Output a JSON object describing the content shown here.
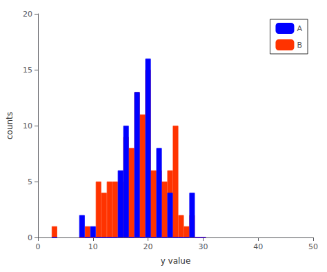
{
  "chart_data": {
    "type": "bar",
    "x": [
      3,
      8,
      9,
      10,
      11,
      12,
      13,
      14,
      15,
      16,
      17,
      18,
      19,
      20,
      21,
      22,
      23,
      24,
      25,
      26,
      27,
      28,
      29,
      30
    ],
    "series": [
      {
        "name": "A",
        "color": "#0000ff",
        "values": [
          0,
          2,
          0,
          1,
          0,
          0,
          0,
          0,
          6,
          10,
          0,
          13,
          0,
          16,
          0,
          8,
          0,
          4,
          0,
          0,
          0,
          4,
          0,
          0
        ]
      },
      {
        "name": "B",
        "color": "#ff3300",
        "values": [
          1,
          0,
          1,
          0,
          5,
          4,
          5,
          5,
          5,
          9,
          8,
          13,
          11,
          15,
          6,
          6,
          5,
          6,
          10,
          2,
          1,
          2,
          0,
          0
        ]
      }
    ],
    "xlabel": "y value",
    "ylabel": "counts",
    "xlim": [
      0,
      50
    ],
    "ylim": [
      0,
      20
    ],
    "xticks": [
      0,
      10,
      20,
      30,
      40,
      50
    ],
    "yticks": [
      0,
      5,
      10,
      15,
      20
    ],
    "legend": "upper right",
    "grid": false
  }
}
